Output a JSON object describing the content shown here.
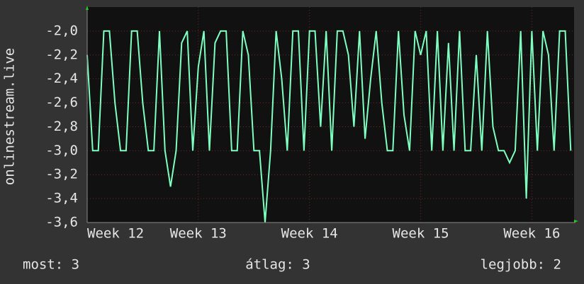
{
  "chart_data": {
    "type": "line",
    "y_label": "onlinestream.live",
    "x": [
      12.0,
      12.05,
      12.1,
      12.15,
      12.2,
      12.25,
      12.3,
      12.35,
      12.4,
      12.45,
      12.5,
      12.55,
      12.6,
      12.65,
      12.7,
      12.75,
      12.8,
      12.85,
      12.9,
      12.95,
      13.0,
      13.05,
      13.1,
      13.15,
      13.2,
      13.25,
      13.3,
      13.35,
      13.4,
      13.45,
      13.5,
      13.55,
      13.6,
      13.65,
      13.7,
      13.75,
      13.8,
      13.85,
      13.9,
      13.95,
      14.0,
      14.05,
      14.1,
      14.15,
      14.2,
      14.25,
      14.3,
      14.35,
      14.4,
      14.45,
      14.5,
      14.55,
      14.6,
      14.65,
      14.7,
      14.75,
      14.8,
      14.85,
      14.9,
      14.95,
      15.0,
      15.05,
      15.1,
      15.15,
      15.2,
      15.25,
      15.3,
      15.35,
      15.4,
      15.45,
      15.5,
      15.55,
      15.6,
      15.65,
      15.7,
      15.75,
      15.8,
      15.85,
      15.9,
      15.95,
      16.0,
      16.05,
      16.1,
      16.15,
      16.2,
      16.25,
      16.3,
      16.35
    ],
    "values": [
      -2.2,
      -3.0,
      -3.0,
      -2.0,
      -2.0,
      -2.6,
      -3.0,
      -3.0,
      -2.0,
      -2.0,
      -2.6,
      -3.0,
      -3.0,
      -2.0,
      -3.0,
      -3.3,
      -3.0,
      -2.1,
      -2.0,
      -3.0,
      -2.3,
      -2.0,
      -3.0,
      -2.1,
      -2.0,
      -2.0,
      -3.0,
      -3.0,
      -2.0,
      -2.2,
      -3.0,
      -3.0,
      -3.6,
      -3.0,
      -2.0,
      -2.4,
      -3.0,
      -2.0,
      -2.0,
      -3.0,
      -2.0,
      -2.0,
      -2.8,
      -2.0,
      -3.0,
      -2.0,
      -2.0,
      -2.2,
      -2.8,
      -2.0,
      -2.9,
      -2.4,
      -2.0,
      -2.6,
      -3.0,
      -3.0,
      -2.0,
      -2.7,
      -3.0,
      -2.0,
      -2.2,
      -2.0,
      -3.0,
      -2.0,
      -3.0,
      -2.1,
      -3.0,
      -2.0,
      -3.0,
      -3.0,
      -2.2,
      -3.0,
      -2.0,
      -2.8,
      -3.0,
      -3.0,
      -3.1,
      -3.0,
      -2.0,
      -3.4,
      -2.0,
      -3.0,
      -2.0,
      -2.2,
      -3.0,
      -2.0,
      -2.0,
      -3.0
    ],
    "color": "#7effc0",
    "xlim": [
      12,
      16.38
    ],
    "xticks": [
      {
        "value": 12,
        "label": "Week 12"
      },
      {
        "value": 13,
        "label": "Week 13"
      },
      {
        "value": 14,
        "label": "Week 14"
      },
      {
        "value": 15,
        "label": "Week 15"
      },
      {
        "value": 16,
        "label": "Week 16"
      }
    ],
    "ylim": [
      -3.6,
      -1.8
    ],
    "yticks": [
      {
        "value": -3.6,
        "label": "-3,6"
      },
      {
        "value": -3.4,
        "label": "-3,4"
      },
      {
        "value": -3.2,
        "label": "-3,2"
      },
      {
        "value": -3.0,
        "label": "-3,0"
      },
      {
        "value": -2.8,
        "label": "-2,8"
      },
      {
        "value": -2.6,
        "label": "-2,6"
      },
      {
        "value": -2.4,
        "label": "-2,4"
      },
      {
        "value": -2.2,
        "label": "-2,2"
      },
      {
        "value": -2.0,
        "label": "-2,0"
      }
    ],
    "grid": true,
    "annotations": [
      "most: 3",
      "átlag: 3",
      "legjobb: 2"
    ]
  }
}
